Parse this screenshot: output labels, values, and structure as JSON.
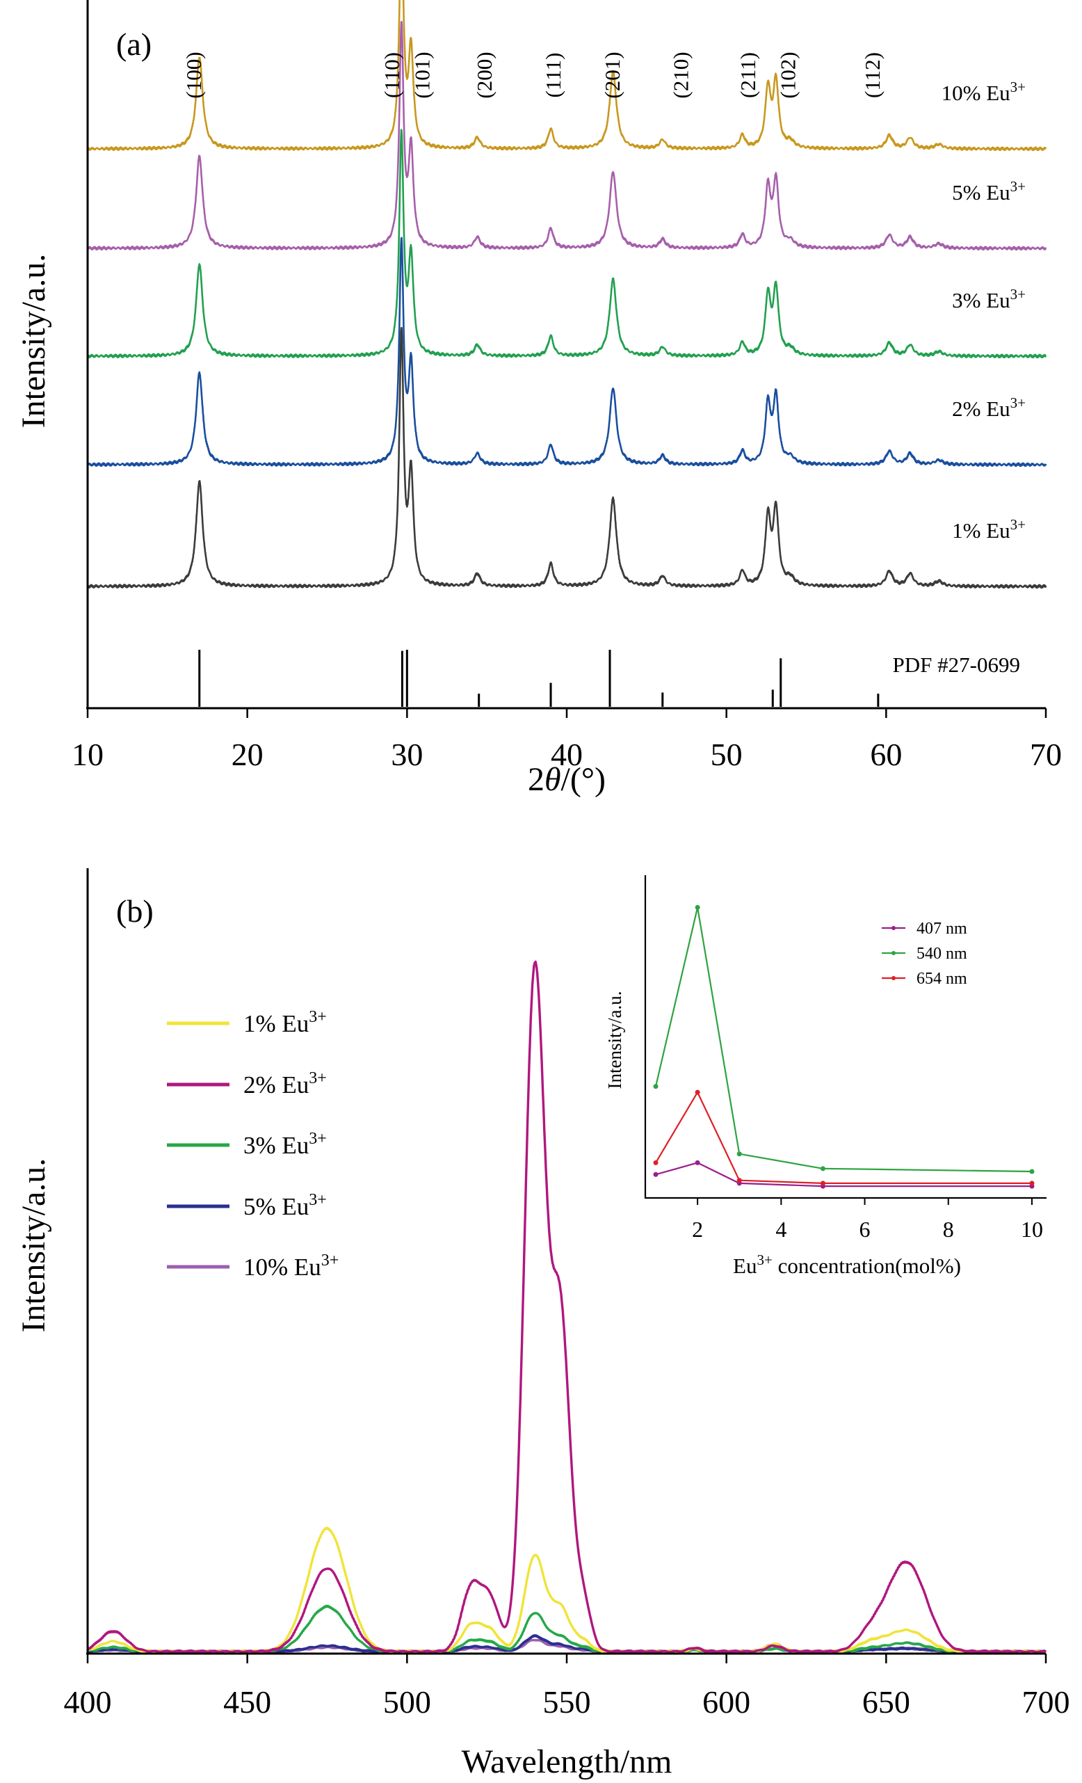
{
  "chart_data": [
    {
      "panel_label": "(a)",
      "type": "line",
      "xlabel_prefix": "2",
      "xlabel_theta": "θ",
      "xlabel_suffix": "/(°)",
      "ylabel": "Intensity/a.u.",
      "xlim": [
        10,
        70
      ],
      "xticks": [
        10,
        20,
        30,
        40,
        50,
        60,
        70
      ],
      "reference_label": "PDF #27-0699",
      "reference_lines": [
        {
          "x": 17.0,
          "h": 1.0
        },
        {
          "x": 29.7,
          "h": 0.98
        },
        {
          "x": 30.0,
          "h": 1.0
        },
        {
          "x": 34.5,
          "h": 0.23
        },
        {
          "x": 39.0,
          "h": 0.42
        },
        {
          "x": 42.7,
          "h": 1.0
        },
        {
          "x": 46.0,
          "h": 0.25
        },
        {
          "x": 52.9,
          "h": 0.3
        },
        {
          "x": 53.4,
          "h": 0.85
        },
        {
          "x": 59.5,
          "h": 0.23
        }
      ],
      "hkl_labels": [
        {
          "x": 17.1,
          "text": "(100)"
        },
        {
          "x": 29.5,
          "text": "(110)"
        },
        {
          "x": 31.4,
          "text": "(101)"
        },
        {
          "x": 35.3,
          "text": "(200)"
        },
        {
          "x": 39.6,
          "text": "(111)"
        },
        {
          "x": 43.3,
          "text": "(201)"
        },
        {
          "x": 47.6,
          "text": "(210)"
        },
        {
          "x": 51.8,
          "text": "(211)"
        },
        {
          "x": 54.3,
          "text": "(102)"
        },
        {
          "x": 59.6,
          "text": "(112)"
        }
      ],
      "peaks": [
        {
          "x": 17.0,
          "w": 0.25,
          "rel": 0.42
        },
        {
          "x": 29.65,
          "w": 0.16,
          "rel": 1.0
        },
        {
          "x": 30.25,
          "w": 0.18,
          "rel": 0.44
        },
        {
          "x": 34.4,
          "w": 0.22,
          "rel": 0.05
        },
        {
          "x": 39.0,
          "w": 0.2,
          "rel": 0.09
        },
        {
          "x": 42.9,
          "w": 0.26,
          "rel": 0.35
        },
        {
          "x": 46.0,
          "w": 0.22,
          "rel": 0.04
        },
        {
          "x": 51.0,
          "w": 0.2,
          "rel": 0.06
        },
        {
          "x": 52.6,
          "w": 0.2,
          "rel": 0.27
        },
        {
          "x": 53.1,
          "w": 0.2,
          "rel": 0.3
        },
        {
          "x": 54.0,
          "w": 0.3,
          "rel": 0.03
        },
        {
          "x": 60.2,
          "w": 0.25,
          "rel": 0.06
        },
        {
          "x": 61.5,
          "w": 0.25,
          "rel": 0.05
        },
        {
          "x": 63.3,
          "w": 0.3,
          "rel": 0.02
        }
      ],
      "series": [
        {
          "name": "1% Eu",
          "sup": "3+",
          "color": "#3a3c3a",
          "max": 0.48
        },
        {
          "name": "2% Eu",
          "sup": "3+",
          "color": "#1a4f9e",
          "max": 0.42
        },
        {
          "name": "3% Eu",
          "sup": "3+",
          "color": "#22a050",
          "max": 0.42
        },
        {
          "name": "5% Eu",
          "sup": "3+",
          "color": "#a65fab",
          "max": 0.42
        },
        {
          "name": "10% Eu",
          "sup": "3+",
          "color": "#c8981e",
          "max": 0.42
        }
      ]
    },
    {
      "panel_label": "(b)",
      "type": "line",
      "xlabel": "Wavelength/nm",
      "ylabel": "Intensity/a.u.",
      "xlim": [
        400,
        700
      ],
      "xticks": [
        400,
        450,
        500,
        550,
        600,
        650,
        700
      ],
      "band_positions": [
        {
          "x": 408,
          "w": 4
        },
        {
          "x": 475,
          "w": 6
        },
        {
          "x": 520,
          "w": 3
        },
        {
          "x": 526,
          "w": 3
        },
        {
          "x": 540,
          "w": 3.2
        },
        {
          "x": 548,
          "w": 3
        },
        {
          "x": 555,
          "w": 2.5
        },
        {
          "x": 590,
          "w": 2
        },
        {
          "x": 615,
          "w": 2.5
        },
        {
          "x": 645,
          "w": 4
        },
        {
          "x": 654,
          "w": 5
        },
        {
          "x": 660,
          "w": 5
        }
      ],
      "series": [
        {
          "name": "1%  Eu",
          "sup": "3+",
          "color": "#f0e43a",
          "amps": [
            0.014,
            0.17,
            0.035,
            0.028,
            0.132,
            0.06,
            0.015,
            0.004,
            0.01,
            0.012,
            0.02,
            0.015
          ]
        },
        {
          "name": "2%  Eu",
          "sup": "3+",
          "color": "#b0177e",
          "amps": [
            0.028,
            0.115,
            0.085,
            0.07,
            0.94,
            0.46,
            0.07,
            0.005,
            0.008,
            0.025,
            0.085,
            0.062
          ]
        },
        {
          "name": "3%  Eu",
          "sup": "3+",
          "color": "#25a848",
          "amps": [
            0.006,
            0.062,
            0.014,
            0.012,
            0.053,
            0.02,
            0.006,
            0.002,
            0.004,
            0.004,
            0.008,
            0.006
          ]
        },
        {
          "name": "5%  Eu",
          "sup": "3+",
          "color": "#2b2f90",
          "amps": [
            0.003,
            0.008,
            0.006,
            0.005,
            0.021,
            0.009,
            0.003,
            0.003,
            0.008,
            0.002,
            0.003,
            0.002
          ]
        },
        {
          "name": "10% Eu",
          "sup": "3+",
          "color": "#9b5fb0",
          "amps": [
            0.002,
            0.006,
            0.004,
            0.004,
            0.016,
            0.007,
            0.002,
            0.003,
            0.01,
            0.002,
            0.003,
            0.002
          ]
        }
      ],
      "inset": {
        "type": "line",
        "xlabel_prefix": "Eu",
        "xlabel_sup": "3+",
        "xlabel_suffix": " concentration(mol%)",
        "ylabel": "Intensity/a.u.",
        "xlim": [
          0.75,
          10.35
        ],
        "ylim": [
          0,
          1.1
        ],
        "xticks": [
          2,
          4,
          6,
          8,
          10
        ],
        "x": [
          1,
          2,
          3,
          5,
          10
        ],
        "series": [
          {
            "name": "407  nm",
            "color": "#9b1e8a",
            "values": [
              0.08,
              0.12,
              0.05,
              0.04,
              0.04
            ]
          },
          {
            "name": "540  nm",
            "color": "#2ea340",
            "values": [
              0.38,
              0.99,
              0.15,
              0.1,
              0.09
            ]
          },
          {
            "name": "654  nm",
            "color": "#dd1f26",
            "values": [
              0.12,
              0.36,
              0.06,
              0.05,
              0.05
            ]
          }
        ]
      }
    }
  ]
}
